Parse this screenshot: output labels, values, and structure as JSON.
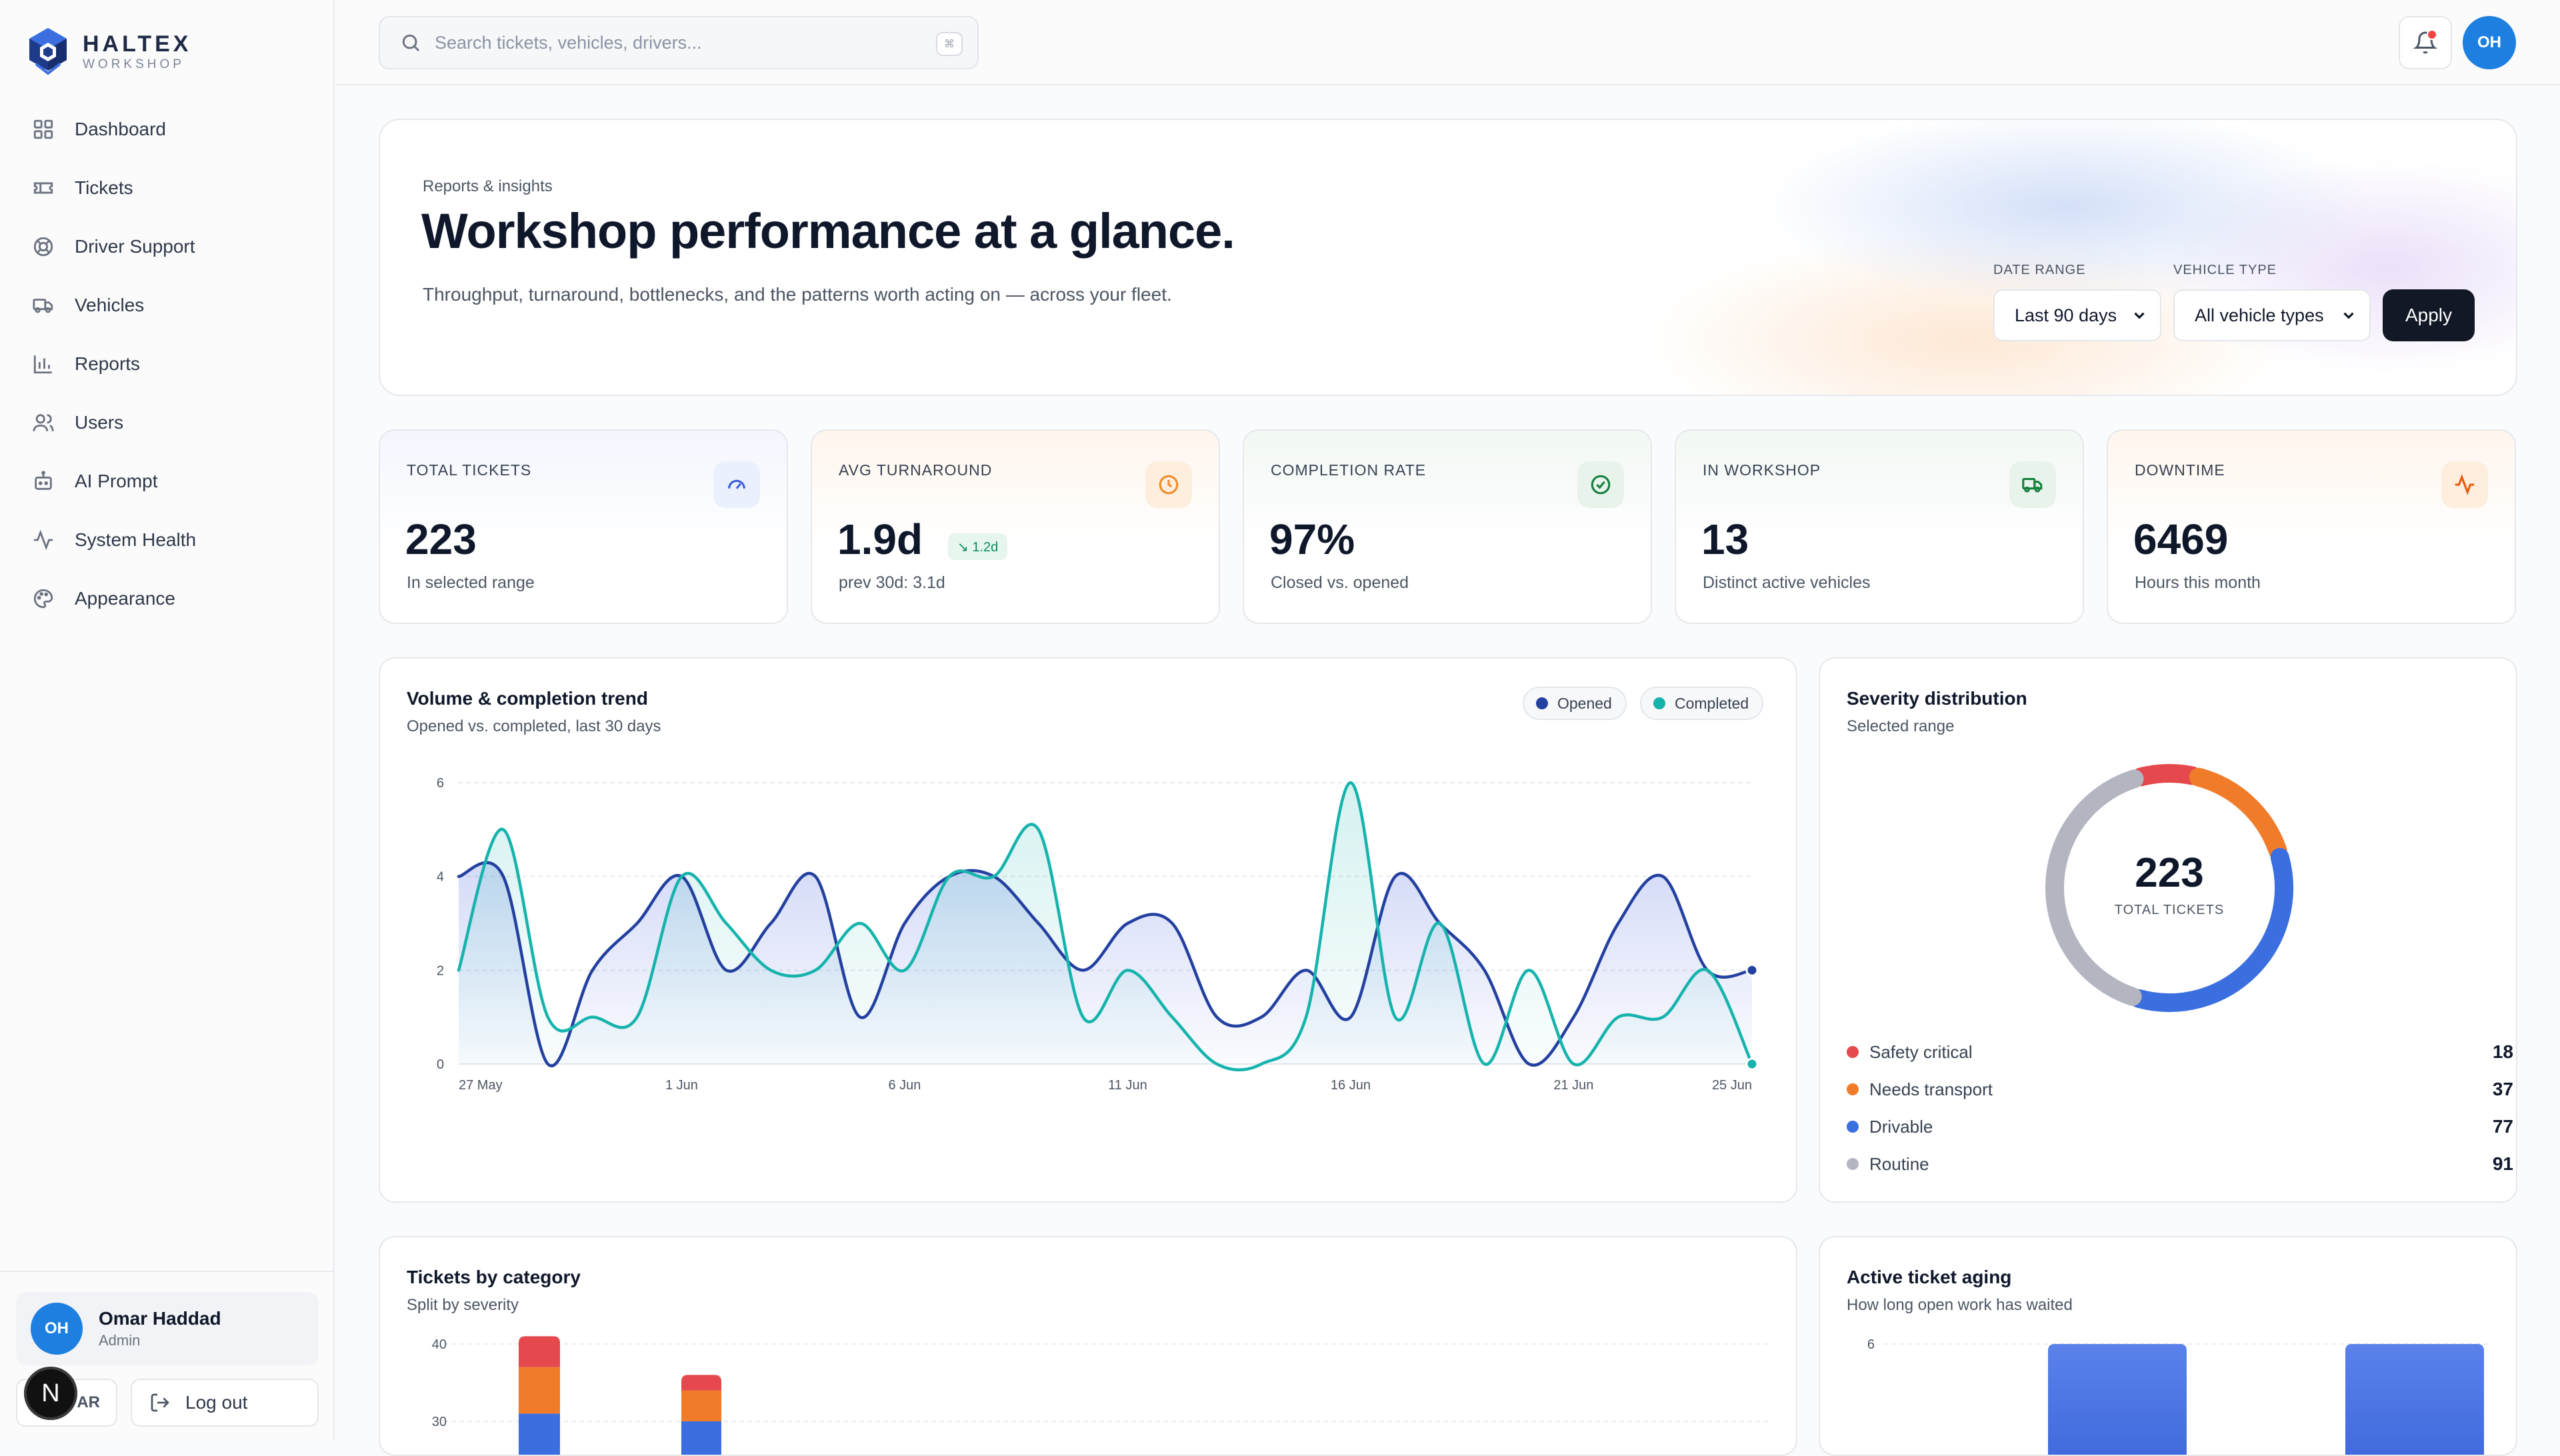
{
  "brand": {
    "name": "HALTEX",
    "sub": "WORKSHOP"
  },
  "nav": [
    {
      "label": "Dashboard",
      "icon": "grid-icon"
    },
    {
      "label": "Tickets",
      "icon": "ticket-icon"
    },
    {
      "label": "Driver Support",
      "icon": "lifebuoy-icon"
    },
    {
      "label": "Vehicles",
      "icon": "truck-icon"
    },
    {
      "label": "Reports",
      "icon": "bar-chart-icon"
    },
    {
      "label": "Users",
      "icon": "users-icon"
    },
    {
      "label": "AI Prompt",
      "icon": "bot-icon"
    },
    {
      "label": "System Health",
      "icon": "activity-icon"
    },
    {
      "label": "Appearance",
      "icon": "palette-icon"
    }
  ],
  "user": {
    "initials": "OH",
    "name": "Omar Haddad",
    "role": "Admin"
  },
  "footer": {
    "lang": "AR",
    "n_badge": "N",
    "logout": "Log out"
  },
  "search": {
    "placeholder": "Search tickets, vehicles, drivers...",
    "kbd": "⌘"
  },
  "topbar": {
    "avatar": "OH"
  },
  "hero": {
    "eyebrow": "Reports & insights",
    "title": "Workshop performance at a glance.",
    "description": "Throughput, turnaround, bottlenecks, and the patterns worth acting on — across your fleet.",
    "date_range_label": "DATE RANGE",
    "date_range_value": "Last 90 days",
    "vehicle_type_label": "VEHICLE TYPE",
    "vehicle_type_value": "All vehicle types",
    "apply": "Apply"
  },
  "kpis": [
    {
      "label": "TOTAL TICKETS",
      "value": "223",
      "sub": "In selected range",
      "icon": "gauge-icon",
      "accent": "#3b5bdb"
    },
    {
      "label": "AVG TURNAROUND",
      "value": "1.9d",
      "sub": "prev 30d: 3.1d",
      "icon": "clock-icon",
      "accent": "#f08c2a",
      "badge": "↘ 1.2d"
    },
    {
      "label": "COMPLETION RATE",
      "value": "97%",
      "sub": "Closed vs. opened",
      "icon": "check-circle-icon",
      "accent": "#15803d"
    },
    {
      "label": "IN WORKSHOP",
      "value": "13",
      "sub": "Distinct active vehicles",
      "icon": "truck-icon",
      "accent": "#15803d"
    },
    {
      "label": "DOWNTIME",
      "value": "6469",
      "sub": "Hours this month",
      "icon": "activity-icon",
      "accent": "#ea580c"
    }
  ],
  "trend": {
    "title": "Volume & completion trend",
    "subtitle": "Opened vs. completed, last 30 days",
    "legend_opened": "Opened",
    "legend_completed": "Completed"
  },
  "severity": {
    "title": "Severity distribution",
    "subtitle": "Selected range",
    "total": "223",
    "total_label": "TOTAL TICKETS",
    "items": [
      {
        "label": "Safety critical",
        "value": 18,
        "color": "#e5484d"
      },
      {
        "label": "Needs transport",
        "value": 37,
        "color": "#f07c2a"
      },
      {
        "label": "Drivable",
        "value": 77,
        "color": "#3b6fe0"
      },
      {
        "label": "Routine",
        "value": 91,
        "color": "#b3b6c0"
      }
    ]
  },
  "category": {
    "title": "Tickets by category",
    "subtitle": "Split by severity"
  },
  "aging": {
    "title": "Active ticket aging",
    "subtitle": "How long open work has waited"
  },
  "chart_data": [
    {
      "type": "area",
      "title": "Volume & completion trend",
      "x": [
        "27 May",
        "28 May",
        "29 May",
        "30 May",
        "31 May",
        "1 Jun",
        "2 Jun",
        "3 Jun",
        "4 Jun",
        "5 Jun",
        "6 Jun",
        "7 Jun",
        "8 Jun",
        "9 Jun",
        "10 Jun",
        "11 Jun",
        "12 Jun",
        "13 Jun",
        "14 Jun",
        "15 Jun",
        "16 Jun",
        "17 Jun",
        "18 Jun",
        "19 Jun",
        "20 Jun",
        "21 Jun",
        "22 Jun",
        "23 Jun",
        "24 Jun",
        "25 Jun"
      ],
      "x_ticks": [
        "27 May",
        "1 Jun",
        "6 Jun",
        "11 Jun",
        "16 Jun",
        "21 Jun",
        "25 Jun"
      ],
      "ylim": [
        0,
        6
      ],
      "y_ticks": [
        0,
        2,
        4,
        6
      ],
      "grid": true,
      "series": [
        {
          "name": "Opened",
          "color": "#2340a0",
          "values": [
            4,
            4,
            0,
            2,
            3,
            4,
            2,
            3,
            4,
            1,
            3,
            4,
            4,
            3,
            2,
            3,
            3,
            1,
            1,
            2,
            1,
            4,
            3,
            2,
            0,
            1,
            3,
            4,
            2,
            2
          ]
        },
        {
          "name": "Completed",
          "color": "#16b3ad",
          "values": [
            2,
            5,
            1,
            1,
            1,
            4,
            3,
            2,
            2,
            3,
            2,
            4,
            4,
            5,
            1,
            2,
            1,
            0,
            0,
            1,
            6,
            1,
            3,
            0,
            2,
            0,
            1,
            1,
            2,
            0
          ]
        }
      ]
    },
    {
      "type": "pie",
      "title": "Severity distribution",
      "categories": [
        "Safety critical",
        "Needs transport",
        "Drivable",
        "Routine"
      ],
      "values": [
        18,
        37,
        77,
        91
      ],
      "colors": [
        "#e5484d",
        "#f07c2a",
        "#3b6fe0",
        "#b3b6c0"
      ]
    },
    {
      "type": "bar",
      "title": "Tickets by category",
      "y_ticks": [
        40,
        30
      ],
      "series": [
        {
          "name": "Drivable",
          "color": "#3b6fe0",
          "values": [
            31,
            30
          ]
        },
        {
          "name": "Needs transport",
          "color": "#f07c2a",
          "values": [
            37,
            34
          ]
        },
        {
          "name": "Safety critical",
          "color": "#e5484d",
          "values": [
            41,
            36
          ]
        }
      ]
    },
    {
      "type": "bar",
      "title": "Active ticket aging",
      "y_ticks": [
        6
      ],
      "series": [
        {
          "color": "#4f79e6",
          "values": [
            6,
            6
          ]
        }
      ]
    }
  ]
}
